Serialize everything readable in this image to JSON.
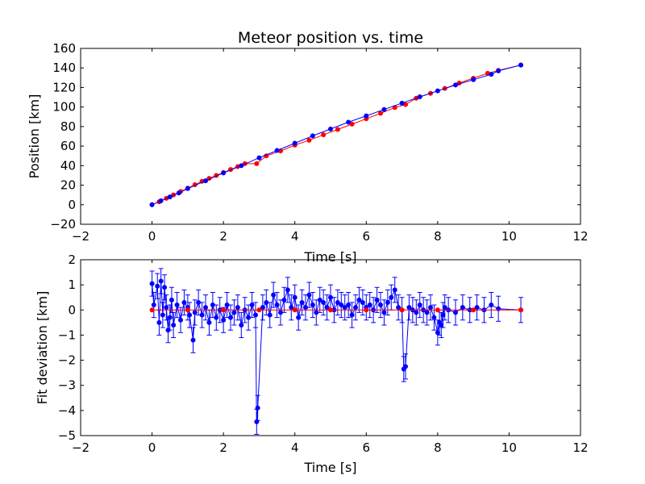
{
  "chart_data": [
    {
      "type": "line",
      "title": "Meteor position vs. time",
      "xlabel": "Time [s]",
      "ylabel": "Position [km]",
      "xlim": [
        -2,
        12
      ],
      "ylim": [
        -20,
        160
      ],
      "xticks": [
        -2,
        0,
        2,
        4,
        6,
        8,
        10,
        12
      ],
      "yticks": [
        -20,
        0,
        20,
        40,
        60,
        80,
        100,
        120,
        140,
        160
      ],
      "grid": false,
      "series": [
        {
          "color": "#ff0000",
          "marker": "point",
          "x": [
            0.0,
            0.2,
            0.4,
            0.6,
            0.8,
            1.0,
            1.2,
            1.4,
            1.6,
            1.8,
            2.0,
            2.2,
            2.4,
            2.6,
            2.93,
            3.2,
            3.6,
            4.0,
            4.4,
            4.8,
            5.2,
            5.6,
            6.0,
            6.4,
            6.8,
            7.1,
            7.4,
            7.8,
            8.2,
            8.6,
            9.0,
            9.4,
            9.7,
            10.33
          ],
          "y": [
            0.0,
            3.0,
            6.5,
            10.0,
            13.5,
            17.0,
            20.5,
            24.0,
            27.0,
            30.0,
            33.0,
            36.0,
            39.0,
            42.0,
            42.0,
            50.0,
            55.0,
            61.0,
            66.0,
            71.5,
            77.0,
            82.5,
            88.0,
            93.5,
            99.5,
            102.5,
            109.0,
            114.0,
            119.0,
            124.5,
            129.5,
            134.5,
            137.5,
            143.0
          ]
        },
        {
          "color": "#0000ff",
          "marker": "point",
          "x": [
            0.0,
            0.25,
            0.5,
            0.75,
            1.0,
            1.5,
            2.0,
            2.5,
            3.0,
            3.5,
            4.0,
            4.5,
            5.0,
            5.5,
            6.0,
            6.5,
            7.0,
            7.5,
            8.0,
            8.5,
            9.0,
            9.5,
            9.7,
            10.33
          ],
          "y": [
            0.0,
            4.0,
            8.0,
            12.0,
            16.5,
            24.5,
            32.5,
            40.0,
            48.0,
            55.5,
            63.0,
            70.5,
            77.5,
            84.5,
            91.0,
            97.5,
            104.0,
            110.5,
            116.5,
            122.5,
            128.0,
            133.5,
            137.0,
            143.0
          ]
        }
      ]
    },
    {
      "type": "line",
      "title": "",
      "xlabel": "Time [s]",
      "ylabel": "Fit deviation [km]",
      "xlim": [
        -2,
        12
      ],
      "ylim": [
        -5,
        2
      ],
      "xticks": [
        -2,
        0,
        2,
        4,
        6,
        8,
        10,
        12
      ],
      "yticks": [
        -5,
        -4,
        -3,
        -2,
        -1,
        0,
        1,
        2
      ],
      "grid": false,
      "series": [
        {
          "color": "#0000ff",
          "marker": "point",
          "error_bar": 0.5,
          "x": [
            0.0,
            0.05,
            0.15,
            0.2,
            0.25,
            0.3,
            0.35,
            0.4,
            0.45,
            0.5,
            0.55,
            0.6,
            0.7,
            0.8,
            0.9,
            1.0,
            1.05,
            1.15,
            1.2,
            1.3,
            1.4,
            1.5,
            1.6,
            1.7,
            1.8,
            1.9,
            2.0,
            2.1,
            2.2,
            2.3,
            2.4,
            2.5,
            2.6,
            2.7,
            2.8,
            2.9,
            2.93,
            2.96,
            3.1,
            3.2,
            3.3,
            3.4,
            3.5,
            3.6,
            3.7,
            3.8,
            3.9,
            4.0,
            4.1,
            4.2,
            4.3,
            4.4,
            4.5,
            4.6,
            4.7,
            4.8,
            4.9,
            5.0,
            5.1,
            5.2,
            5.3,
            5.4,
            5.5,
            5.6,
            5.7,
            5.8,
            5.9,
            6.0,
            6.1,
            6.2,
            6.3,
            6.4,
            6.5,
            6.6,
            6.7,
            6.8,
            6.9,
            7.0,
            7.05,
            7.1,
            7.2,
            7.3,
            7.4,
            7.5,
            7.6,
            7.7,
            7.8,
            7.9,
            8.0,
            8.05,
            8.1,
            8.15,
            8.2,
            8.3,
            8.5,
            8.7,
            8.9,
            9.1,
            9.3,
            9.5,
            9.7,
            10.33
          ],
          "y": [
            1.05,
            0.2,
            0.95,
            -0.5,
            1.15,
            -0.2,
            0.9,
            0.1,
            -0.8,
            -0.3,
            0.4,
            -0.6,
            0.2,
            -0.4,
            0.3,
            0.1,
            -0.2,
            -1.2,
            -0.1,
            0.3,
            -0.2,
            0.1,
            -0.5,
            0.2,
            -0.3,
            0.0,
            -0.4,
            0.2,
            -0.3,
            -0.1,
            0.1,
            -0.6,
            0.0,
            -0.3,
            0.2,
            -0.2,
            -4.45,
            -3.9,
            0.1,
            0.3,
            -0.2,
            0.6,
            0.2,
            -0.1,
            0.4,
            0.8,
            0.1,
            0.5,
            -0.3,
            0.3,
            0.1,
            0.6,
            0.2,
            -0.1,
            0.4,
            0.3,
            0.1,
            0.5,
            0.0,
            0.3,
            0.2,
            0.1,
            0.2,
            -0.2,
            0.1,
            0.4,
            0.3,
            0.1,
            0.2,
            0.0,
            0.4,
            0.2,
            -0.1,
            0.3,
            0.5,
            0.8,
            0.1,
            0.0,
            -2.35,
            -2.25,
            0.1,
            0.0,
            -0.1,
            0.2,
            0.0,
            -0.1,
            0.1,
            -0.3,
            -0.9,
            -0.5,
            -0.6,
            -0.2,
            0.1,
            0.0,
            -0.1,
            0.1,
            0.0,
            0.1,
            0.0,
            0.2,
            0.05,
            0.0
          ]
        },
        {
          "color": "#ff0000",
          "marker": "point",
          "x": [
            0.0,
            1.0,
            2.0,
            3.0,
            4.0,
            5.0,
            6.0,
            7.0,
            8.0,
            9.0,
            10.33
          ],
          "y": [
            0.0,
            0.0,
            0.0,
            0.0,
            0.0,
            0.0,
            0.0,
            0.0,
            0.0,
            0.0,
            0.0
          ]
        }
      ]
    }
  ]
}
